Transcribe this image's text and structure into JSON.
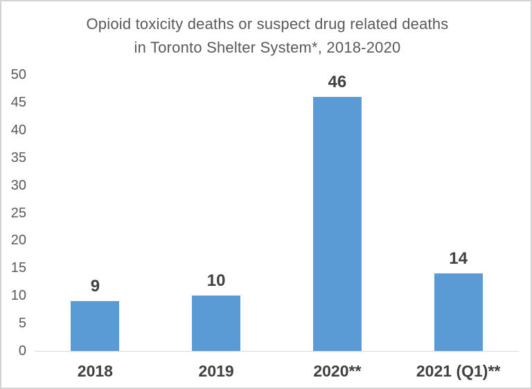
{
  "window": {
    "background_color": "#ffffff",
    "border_color": "#d2d2d2"
  },
  "chart_data": {
    "type": "bar",
    "title": "Opioid toxicity deaths or suspect drug related deaths in Toronto Shelter System*, 2018-2020",
    "title_line1": "Opioid toxicity deaths or suspect drug related deaths",
    "title_line2": "in Toronto Shelter System*, 2018-2020",
    "categories": [
      "2018",
      "2019",
      "2020**",
      "2021 (Q1)**"
    ],
    "values": [
      9,
      10,
      46,
      14
    ],
    "data_labels": [
      "9",
      "10",
      "46",
      "14"
    ],
    "xlabel": "",
    "ylabel": "",
    "ylim": [
      0,
      50
    ],
    "yticks": [
      0,
      5,
      10,
      15,
      20,
      25,
      30,
      35,
      40,
      45,
      50
    ],
    "gridlines": false,
    "legend_position": "none",
    "bar_color": "#5B9BD5",
    "axis_line_color": "#d9d9d9",
    "title_color": "#595959",
    "ytick_label_color": "#595959",
    "category_label_color": "#404040",
    "data_label_color": "#404040"
  }
}
